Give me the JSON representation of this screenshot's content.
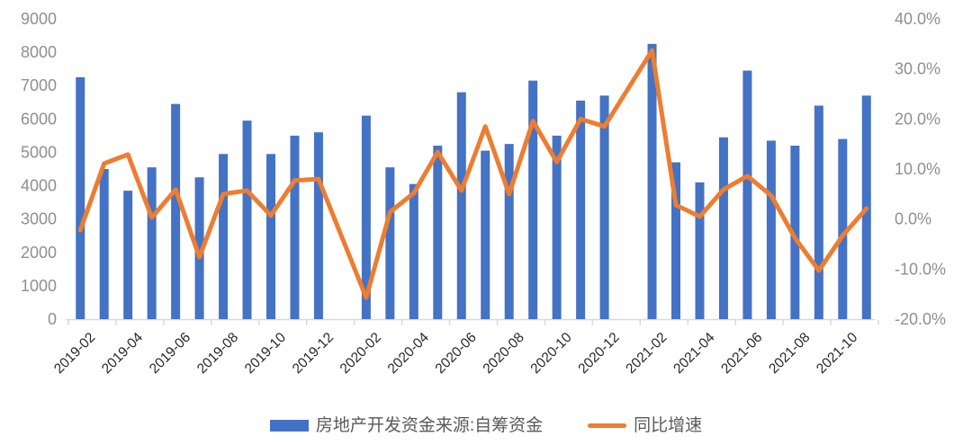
{
  "chart_data": {
    "type": "bar+line",
    "title": "",
    "categories": [
      "2019-02",
      "2019-03",
      "2019-04",
      "2019-05",
      "2019-06",
      "2019-07",
      "2019-08",
      "2019-09",
      "2019-10",
      "2019-11",
      "2019-12",
      "2020-02",
      "2020-03",
      "2020-04",
      "2020-05",
      "2020-06",
      "2020-07",
      "2020-08",
      "2020-09",
      "2020-10",
      "2020-11",
      "2020-12",
      "2021-02",
      "2021-03",
      "2021-04",
      "2021-05",
      "2021-06",
      "2021-07",
      "2021-08",
      "2021-09",
      "2021-10",
      "2021-11"
    ],
    "missing_months": [
      "2020-01",
      "2021-01"
    ],
    "series": [
      {
        "name": "房地产开发资金来源:自筹资金",
        "type": "bar",
        "axis": "left",
        "color": "#4472C4",
        "values": [
          7250,
          4500,
          3850,
          4550,
          6450,
          4250,
          4950,
          5950,
          4950,
          5500,
          5600,
          6100,
          4550,
          4050,
          5200,
          6800,
          5050,
          5250,
          7150,
          5500,
          6550,
          6700,
          8250,
          4700,
          4100,
          5450,
          7450,
          5350,
          5200,
          6400,
          5400,
          6700
        ]
      },
      {
        "name": "同比增速",
        "type": "line",
        "axis": "right",
        "color": "#ED7D31",
        "values": [
          -2.2,
          11.1,
          12.9,
          0.3,
          5.9,
          -7.6,
          5.0,
          5.7,
          0.7,
          7.7,
          8.0,
          -15.7,
          1.4,
          5.2,
          13.4,
          5.7,
          18.5,
          5.0,
          19.6,
          11.4,
          20.0,
          18.5,
          33.7,
          2.8,
          0.5,
          5.9,
          8.6,
          4.7,
          -3.8,
          -10.3,
          -3.3,
          2.1
        ]
      }
    ],
    "left_axis": {
      "min": 0,
      "max": 9000,
      "step": 1000,
      "ticks": [
        "0",
        "1000",
        "2000",
        "3000",
        "4000",
        "5000",
        "6000",
        "7000",
        "8000",
        "9000"
      ]
    },
    "right_axis": {
      "min": -20,
      "max": 40,
      "step": 10,
      "ticks": [
        "-20.0%",
        "-10.0%",
        "0.0%",
        "10.0%",
        "20.0%",
        "30.0%",
        "40.0%"
      ]
    },
    "x_tick_labels": [
      "2019-02",
      "2019-04",
      "2019-06",
      "2019-08",
      "2019-10",
      "2019-12",
      "2020-02",
      "2020-04",
      "2020-06",
      "2020-08",
      "2020-10",
      "2020-12",
      "2021-02",
      "2021-04",
      "2021-06",
      "2021-08",
      "2021-10"
    ],
    "legend_position": "bottom",
    "grid": "off"
  },
  "legend": {
    "bars_label": "房地产开发资金来源:自筹资金",
    "line_label": "同比增速"
  },
  "colors": {
    "bar": "#4472C4",
    "line": "#ED7D31",
    "axis_line": "#D9D9D9",
    "axis_number": "#8F8F8F",
    "x_label": "#262626",
    "legend_text": "#595959",
    "background": "#FFFFFF"
  }
}
